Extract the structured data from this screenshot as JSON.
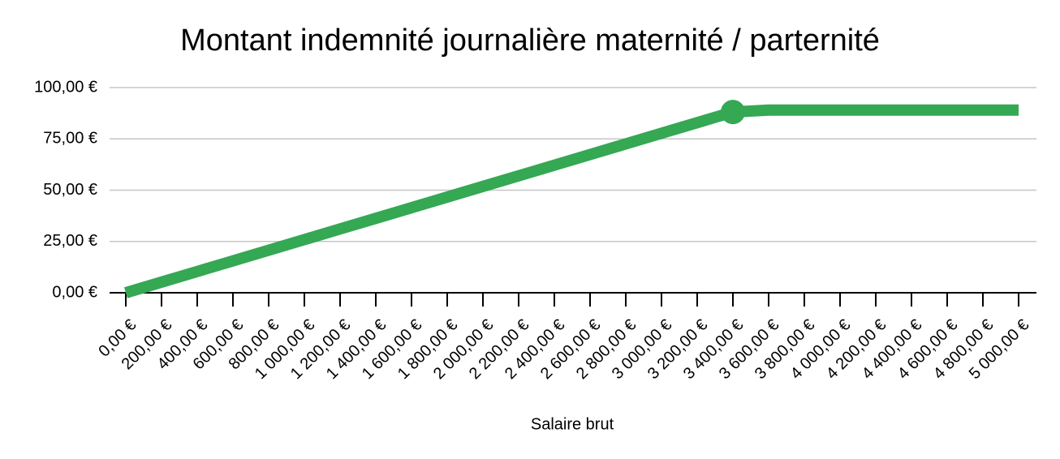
{
  "chart_data": {
    "type": "line",
    "title": "Montant indemnité journalière maternité / parternité",
    "x_label": "Salaire brut",
    "categories": [
      "0,00 €",
      "200,00 €",
      "400,00 €",
      "600,00 €",
      "800,00 €",
      "1 000,00 €",
      "1 200,00 €",
      "1 400,00 €",
      "1 600,00 €",
      "1 800,00 €",
      "2 000,00 €",
      "2 200,00 €",
      "2 400,00 €",
      "2 600,00 €",
      "2 800,00 €",
      "3 000,00 €",
      "3 200,00 €",
      "3 400,00 €",
      "3 600,00 €",
      "3 800,00 €",
      "4 000,00 €",
      "4 200,00 €",
      "4 400,00 €",
      "4 600,00 €",
      "4 800,00 €",
      "5 000,00 €"
    ],
    "series": [
      {
        "name": "Montant",
        "color": "#34a853",
        "values": [
          0,
          5.18,
          10.36,
          15.55,
          20.73,
          25.91,
          31.09,
          36.27,
          41.45,
          46.64,
          51.82,
          57.0,
          62.18,
          67.36,
          72.55,
          77.73,
          82.91,
          88.09,
          89.03,
          89.03,
          89.03,
          89.03,
          89.03,
          89.03,
          89.03,
          89.03
        ],
        "marker_points": [
          17
        ]
      }
    ],
    "ylim": [
      0,
      100
    ],
    "yticks": [
      {
        "value": 0,
        "label": "0,00 €"
      },
      {
        "value": 25,
        "label": "25,00 €"
      },
      {
        "value": 50,
        "label": "50,00 €"
      },
      {
        "value": 75,
        "label": "75,00 €"
      },
      {
        "value": 100,
        "label": "100,00 €"
      }
    ],
    "grid": true
  }
}
